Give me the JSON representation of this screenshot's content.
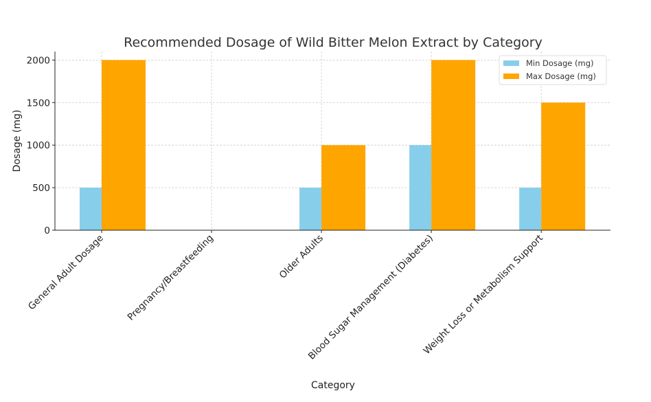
{
  "chart_data": {
    "type": "bar",
    "title": "Recommended Dosage of Wild Bitter Melon Extract by Category",
    "xlabel": "Category",
    "ylabel": "Dosage (mg)",
    "ylim": [
      0,
      2100
    ],
    "yticks": [
      0,
      500,
      1000,
      1500,
      2000
    ],
    "grid": true,
    "legend_position": "top-right",
    "categories": [
      "General Adult Dosage",
      "Pregnancy/Breastfeeding",
      "Older Adults",
      "Blood Sugar Management (Diabetes)",
      "Weight Loss or Metabolism Support"
    ],
    "series": [
      {
        "name": "Min Dosage (mg)",
        "color": "#87ceeb",
        "values": [
          500,
          0,
          500,
          1000,
          500
        ]
      },
      {
        "name": "Max Dosage (mg)",
        "color": "#ffa500",
        "values": [
          2000,
          0,
          1000,
          2000,
          1500
        ]
      }
    ]
  }
}
